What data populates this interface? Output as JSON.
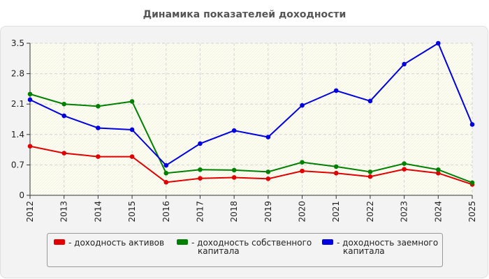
{
  "chart_data": {
    "type": "line",
    "title": "Динамика показателей доходности",
    "xlabel": "",
    "ylabel": "",
    "x": [
      "2012",
      "2013",
      "2014",
      "2015",
      "2016",
      "2017",
      "2018",
      "2019",
      "2020",
      "2021",
      "2022",
      "2023",
      "2024",
      "2025"
    ],
    "ylim": [
      0,
      3.5
    ],
    "yticks": [
      "0",
      "0.7",
      "1.4",
      "2.1",
      "2.8",
      "3.5"
    ],
    "grid": true,
    "legend_position": "bottom",
    "series": [
      {
        "name_lines": [
          "- доходность активов"
        ],
        "color": "#e00000",
        "values": [
          1.13,
          0.97,
          0.89,
          0.89,
          0.3,
          0.39,
          0.41,
          0.38,
          0.56,
          0.51,
          0.43,
          0.6,
          0.51,
          0.25
        ]
      },
      {
        "name_lines": [
          "- доходность собственного",
          "капитала"
        ],
        "color": "#008000",
        "values": [
          2.33,
          2.1,
          2.05,
          2.16,
          0.51,
          0.59,
          0.58,
          0.54,
          0.76,
          0.66,
          0.54,
          0.73,
          0.59,
          0.29
        ]
      },
      {
        "name_lines": [
          "- доходность заемного",
          "капитала"
        ],
        "color": "#0000e0",
        "values": [
          2.2,
          1.83,
          1.55,
          1.51,
          0.69,
          1.19,
          1.49,
          1.34,
          2.07,
          2.41,
          2.17,
          3.02,
          3.5,
          1.63
        ]
      }
    ]
  }
}
